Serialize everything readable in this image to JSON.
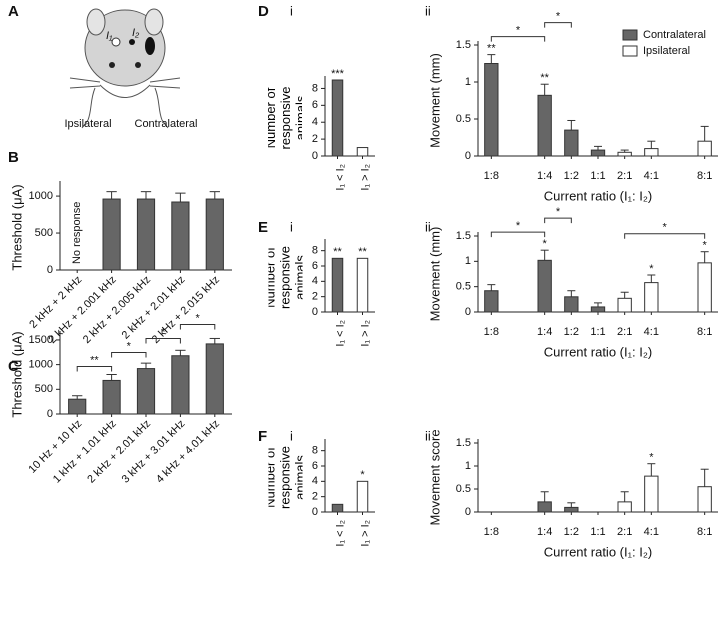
{
  "illustration": {
    "panel_label": "A",
    "electrodes": [
      "I₁",
      "I₂"
    ],
    "sides": [
      "Ipsilateral",
      "Contralateral"
    ]
  },
  "chart_data": [
    {
      "type": "bar",
      "panel_label": "B",
      "ylabel": "Threshold (μA)",
      "categories": [
        "2 kHz + 2 kHz",
        "2 kHz + 2.001 kHz",
        "2 kHz + 2.005 kHz",
        "2 kHz + 2.01 kHz",
        "2 kHz + 2.015 kHz"
      ],
      "values": [
        null,
        960,
        960,
        920,
        960
      ],
      "errors": [
        null,
        100,
        100,
        120,
        100
      ],
      "color": "#666666",
      "ylim": [
        0,
        1150
      ],
      "yticks": [
        0,
        500,
        1000
      ],
      "annotation": "No response"
    },
    {
      "type": "bar",
      "panel_label": "C",
      "ylabel": "Threshold (μA)",
      "categories": [
        "10 Hz + 10 Hz",
        "1 kHz + 1.01 kHz",
        "2 kHz + 2.01 kHz",
        "3 kHz + 3.01 kHz",
        "4 kHz + 4.01 kHz"
      ],
      "values": [
        300,
        680,
        920,
        1180,
        1420
      ],
      "errors": [
        70,
        120,
        110,
        110,
        110
      ],
      "color": "#666666",
      "ylim": [
        0,
        1600
      ],
      "yticks": [
        0,
        500,
        1000,
        1500
      ],
      "brackets": [
        {
          "from": "10 Hz + 10 Hz",
          "to": "1 kHz + 1.01 kHz",
          "label": "**"
        },
        {
          "from": "1 kHz + 1.01 kHz",
          "to": "2 kHz + 2.01 kHz",
          "label": "*"
        },
        {
          "from": "2 kHz + 2.01 kHz",
          "to": "3 kHz + 3.01 kHz",
          "label": "*"
        },
        {
          "from": "3 kHz + 3.01 kHz",
          "to": "4 kHz + 4.01 kHz",
          "label": "*"
        }
      ]
    },
    {
      "type": "bar",
      "panel_label": "D",
      "sub_label": "i",
      "ylabel": "Number of responsive animals",
      "categories": [
        "I₁ < I₂",
        "I₁ > I₂"
      ],
      "values": [
        9,
        1
      ],
      "colors": [
        "#666666",
        "#ffffff"
      ],
      "annotations": [
        "***",
        null
      ],
      "ylim": [
        0,
        9
      ],
      "yticks": [
        0,
        2,
        4,
        6,
        8
      ]
    },
    {
      "type": "bar",
      "sub_label": "ii",
      "ylabel": "Movement (mm)",
      "xlabel": "Current ratio (I₁: I₂)",
      "categories": [
        "1:8",
        null,
        "1:4",
        "1:2",
        "1:1",
        "2:1",
        "4:1",
        null,
        "8:1"
      ],
      "series": [
        {
          "name": "Contralateral",
          "color": "#666666",
          "values": [
            1.25,
            null,
            0.82,
            0.35,
            0.08,
            null,
            null,
            null,
            null
          ],
          "errors": [
            0.12,
            null,
            0.15,
            0.13,
            0.05,
            null,
            null,
            null,
            null
          ],
          "annotations": [
            "**",
            null,
            "**",
            null,
            null,
            null,
            null,
            null,
            null
          ]
        },
        {
          "name": "Ipsilateral",
          "color": "#ffffff",
          "values": [
            null,
            null,
            null,
            null,
            null,
            0.05,
            0.1,
            null,
            0.2
          ],
          "errors": [
            null,
            null,
            null,
            null,
            null,
            0.03,
            0.1,
            null,
            0.2
          ]
        }
      ],
      "ylim": [
        0,
        1.5
      ],
      "yticks": [
        0,
        0.5,
        1,
        1.5
      ],
      "legend": "top-right",
      "brackets": [
        {
          "from": "1:8",
          "to": "1:4",
          "label": "*"
        },
        {
          "from": "1:4",
          "to": "1:2",
          "label": "*"
        }
      ]
    },
    {
      "type": "bar",
      "panel_label": "E",
      "sub_label": "i",
      "ylabel": "Number of responsive animals",
      "categories": [
        "I₁ < I₂",
        "I₁ > I₂"
      ],
      "values": [
        7,
        7
      ],
      "colors": [
        "#666666",
        "#ffffff"
      ],
      "annotations": [
        "**",
        "**"
      ],
      "ylim": [
        0,
        9
      ],
      "yticks": [
        0,
        2,
        4,
        6,
        8
      ]
    },
    {
      "type": "bar",
      "sub_label": "ii",
      "ylabel": "Movement (mm)",
      "xlabel": "Current ratio (I₁: I₂)",
      "categories": [
        "1:8",
        null,
        "1:4",
        "1:2",
        "1:1",
        "2:1",
        "4:1",
        null,
        "8:1"
      ],
      "series": [
        {
          "name": "Contralateral",
          "color": "#666666",
          "values": [
            0.42,
            null,
            1.02,
            0.3,
            0.1,
            null,
            null,
            null,
            null
          ],
          "errors": [
            0.12,
            null,
            0.2,
            0.12,
            0.08,
            null,
            null,
            null,
            null
          ],
          "annotations": [
            null,
            null,
            "*",
            null,
            null,
            null,
            null,
            null,
            null
          ]
        },
        {
          "name": "Ipsilateral",
          "color": "#ffffff",
          "values": [
            null,
            null,
            null,
            null,
            null,
            0.27,
            0.58,
            null,
            0.97
          ],
          "errors": [
            null,
            null,
            null,
            null,
            null,
            0.12,
            0.15,
            null,
            0.22
          ],
          "annotations": [
            null,
            null,
            null,
            null,
            null,
            null,
            "*",
            null,
            "*"
          ]
        }
      ],
      "ylim": [
        0,
        1.5
      ],
      "yticks": [
        0,
        0.5,
        1,
        1.5
      ],
      "brackets": [
        {
          "from": "1:8",
          "to": "1:4",
          "label": "*"
        },
        {
          "from": "1:4",
          "to": "1:2",
          "label": "*"
        },
        {
          "from": "2:1",
          "to": "8:1",
          "label": "*"
        }
      ]
    },
    {
      "type": "bar",
      "panel_label": "F",
      "sub_label": "i",
      "ylabel": "Number of responsive animals",
      "categories": [
        "I₁ < I₂",
        "I₁ > I₂"
      ],
      "values": [
        1,
        4
      ],
      "colors": [
        "#666666",
        "#ffffff"
      ],
      "annotations": [
        null,
        "*"
      ],
      "ylim": [
        0,
        9
      ],
      "yticks": [
        0,
        2,
        4,
        6,
        8
      ]
    },
    {
      "type": "bar",
      "sub_label": "ii",
      "ylabel": "Movement score",
      "xlabel": "Current ratio (I₁: I₂)",
      "categories": [
        "1:8",
        null,
        "1:4",
        "1:2",
        "1:1",
        "2:1",
        "4:1",
        null,
        "8:1"
      ],
      "series": [
        {
          "name": "Contralateral",
          "color": "#666666",
          "values": [
            null,
            null,
            0.22,
            0.1,
            null,
            null,
            null,
            null,
            null
          ],
          "errors": [
            null,
            null,
            0.22,
            0.1,
            null,
            null,
            null,
            null,
            null
          ]
        },
        {
          "name": "Ipsilateral",
          "color": "#ffffff",
          "values": [
            null,
            null,
            null,
            null,
            null,
            0.22,
            0.78,
            null,
            0.55
          ],
          "errors": [
            null,
            null,
            null,
            null,
            null,
            0.22,
            0.27,
            null,
            0.38
          ],
          "annotations": [
            null,
            null,
            null,
            null,
            null,
            null,
            "*",
            null,
            null
          ]
        }
      ],
      "ylim": [
        0,
        1.5
      ],
      "yticks": [
        0,
        0.5,
        1,
        1.5
      ]
    }
  ]
}
